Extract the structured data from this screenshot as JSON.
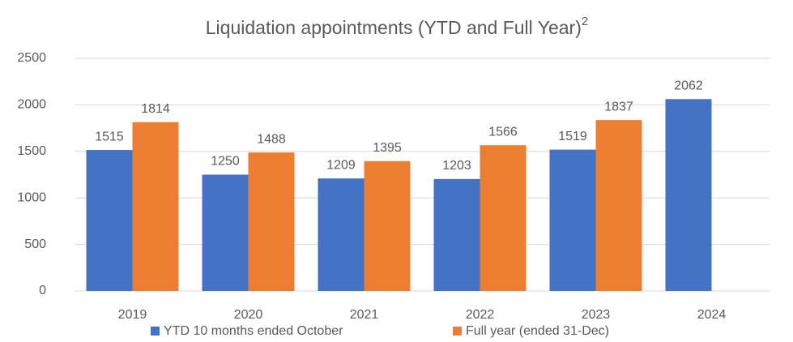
{
  "chart_data": {
    "type": "bar",
    "title": "Liquidation appointments (YTD and Full Year)",
    "title_superscript": "2",
    "categories": [
      "2019",
      "2020",
      "2021",
      "2022",
      "2023",
      "2024"
    ],
    "series": [
      {
        "name": "YTD 10 months ended October",
        "color": "#4472c4",
        "values": [
          1515,
          1250,
          1209,
          1203,
          1519,
          2062
        ]
      },
      {
        "name": "Full year (ended 31-Dec)",
        "color": "#ed7d31",
        "values": [
          1814,
          1488,
          1395,
          1566,
          1837,
          null
        ]
      }
    ],
    "ylim": [
      0,
      2500
    ],
    "yticks": [
      0,
      500,
      1000,
      1500,
      2000,
      2500
    ],
    "grid": true,
    "legend": "bottom"
  }
}
